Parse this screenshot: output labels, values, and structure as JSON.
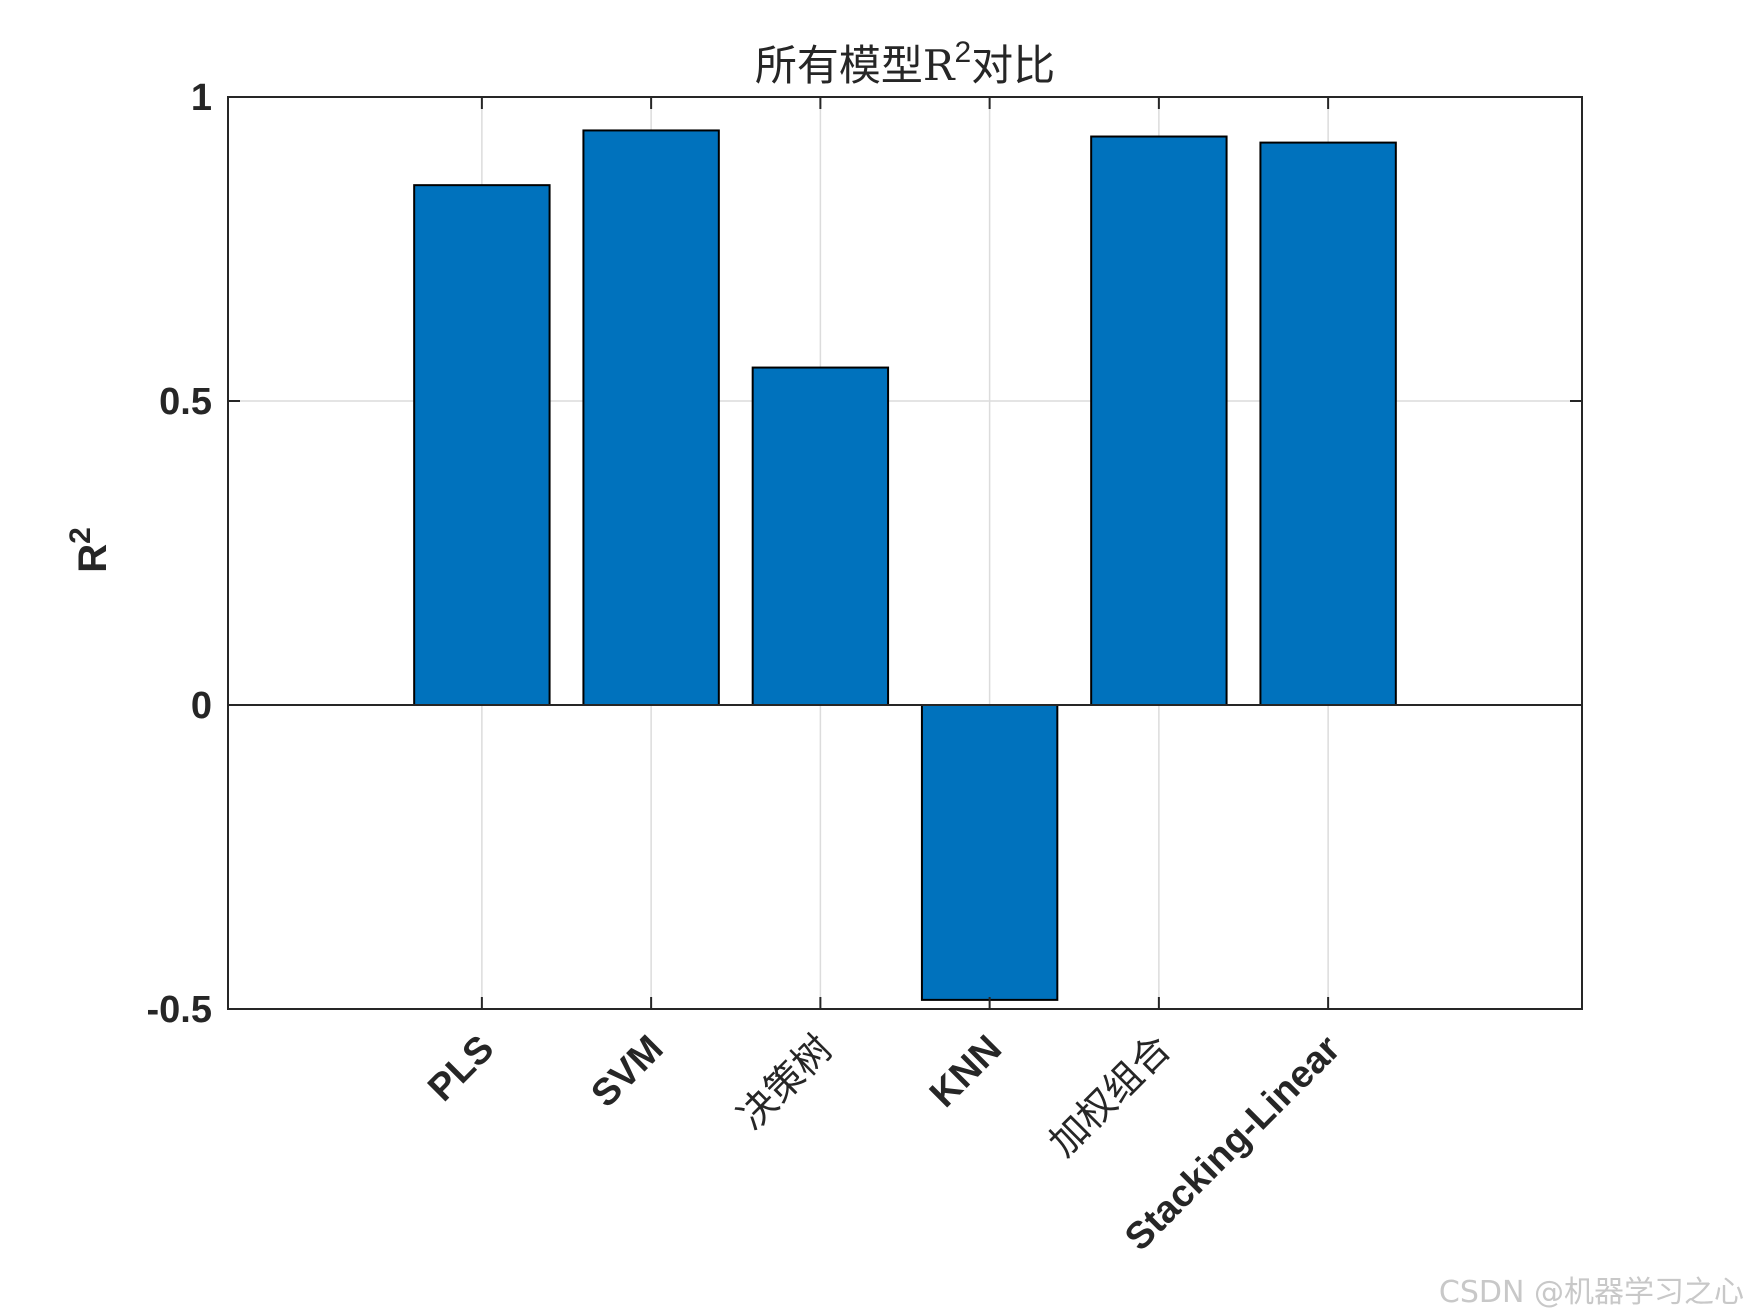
{
  "chart_data": {
    "type": "bar",
    "title": "所有模型R²对比",
    "title_parts": {
      "pre": "所有模型R",
      "sup": "2",
      "post": "对比"
    },
    "ylabel": "R²",
    "ylabel_parts": {
      "base": "R",
      "sup": "2"
    },
    "xlabel": "",
    "categories": [
      "PLS",
      "SVM",
      "决策树",
      "KNN",
      "加权组合",
      "Stacking-Linear"
    ],
    "values": [
      0.855,
      0.945,
      0.555,
      -0.485,
      0.935,
      0.925
    ],
    "ylim": [
      -0.5,
      1
    ],
    "yticks": [
      -0.5,
      0,
      0.5,
      1
    ],
    "ytick_labels": [
      "-0.5",
      "0",
      "0.5",
      "1"
    ],
    "grid": true,
    "legend": "none",
    "bar_color": "#0072BD",
    "edge_color": "#000000"
  },
  "watermark": "CSDN @机器学习之心"
}
